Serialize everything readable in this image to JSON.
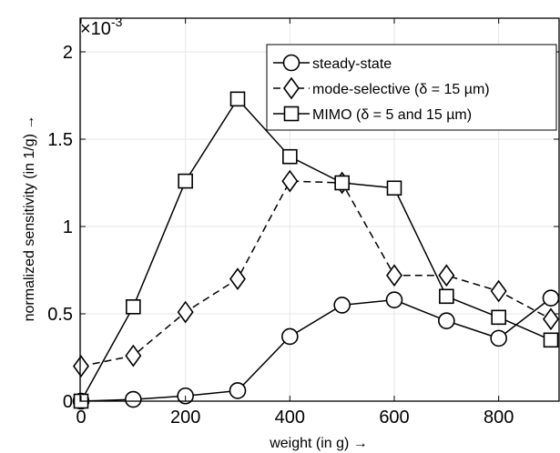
{
  "chart_data": {
    "type": "line",
    "title": "",
    "xlabel": "weight    (in g) →",
    "ylabel": "normalized sensitivity    (in 1/g) →",
    "exponent_base": "×10",
    "exponent_power": "-3",
    "xlim": [
      0,
      900
    ],
    "ylim": [
      0,
      2.1
    ],
    "xticks": [
      0,
      200,
      400,
      600,
      800
    ],
    "yticks": [
      0,
      0.5,
      1,
      1.5,
      2
    ],
    "xtick_labels": [
      "0",
      "200",
      "400",
      "600",
      "800"
    ],
    "ytick_labels": [
      "0",
      "0.5",
      "1",
      "1.5",
      "2"
    ],
    "grid": true,
    "legend_position": "top-right",
    "x": [
      0,
      100,
      200,
      300,
      400,
      500,
      600,
      700,
      800,
      900
    ],
    "series": [
      {
        "name": "steady-state",
        "marker": "circle",
        "line": "solid",
        "values": [
          0.0,
          0.01,
          0.03,
          0.06,
          0.37,
          0.55,
          0.58,
          0.46,
          0.36,
          0.59
        ]
      },
      {
        "name": "mode-selective (δ = 15 µm)",
        "marker": "diamond",
        "line": "dashed",
        "values": [
          0.2,
          0.26,
          0.51,
          0.7,
          1.26,
          1.25,
          0.72,
          0.72,
          0.63,
          0.47
        ]
      },
      {
        "name": "MIMO (δ = 5 and 15 µm)",
        "marker": "square",
        "line": "solid",
        "values": [
          0.0,
          0.54,
          1.26,
          1.73,
          1.4,
          1.25,
          1.22,
          0.6,
          0.48,
          0.35
        ]
      }
    ]
  }
}
